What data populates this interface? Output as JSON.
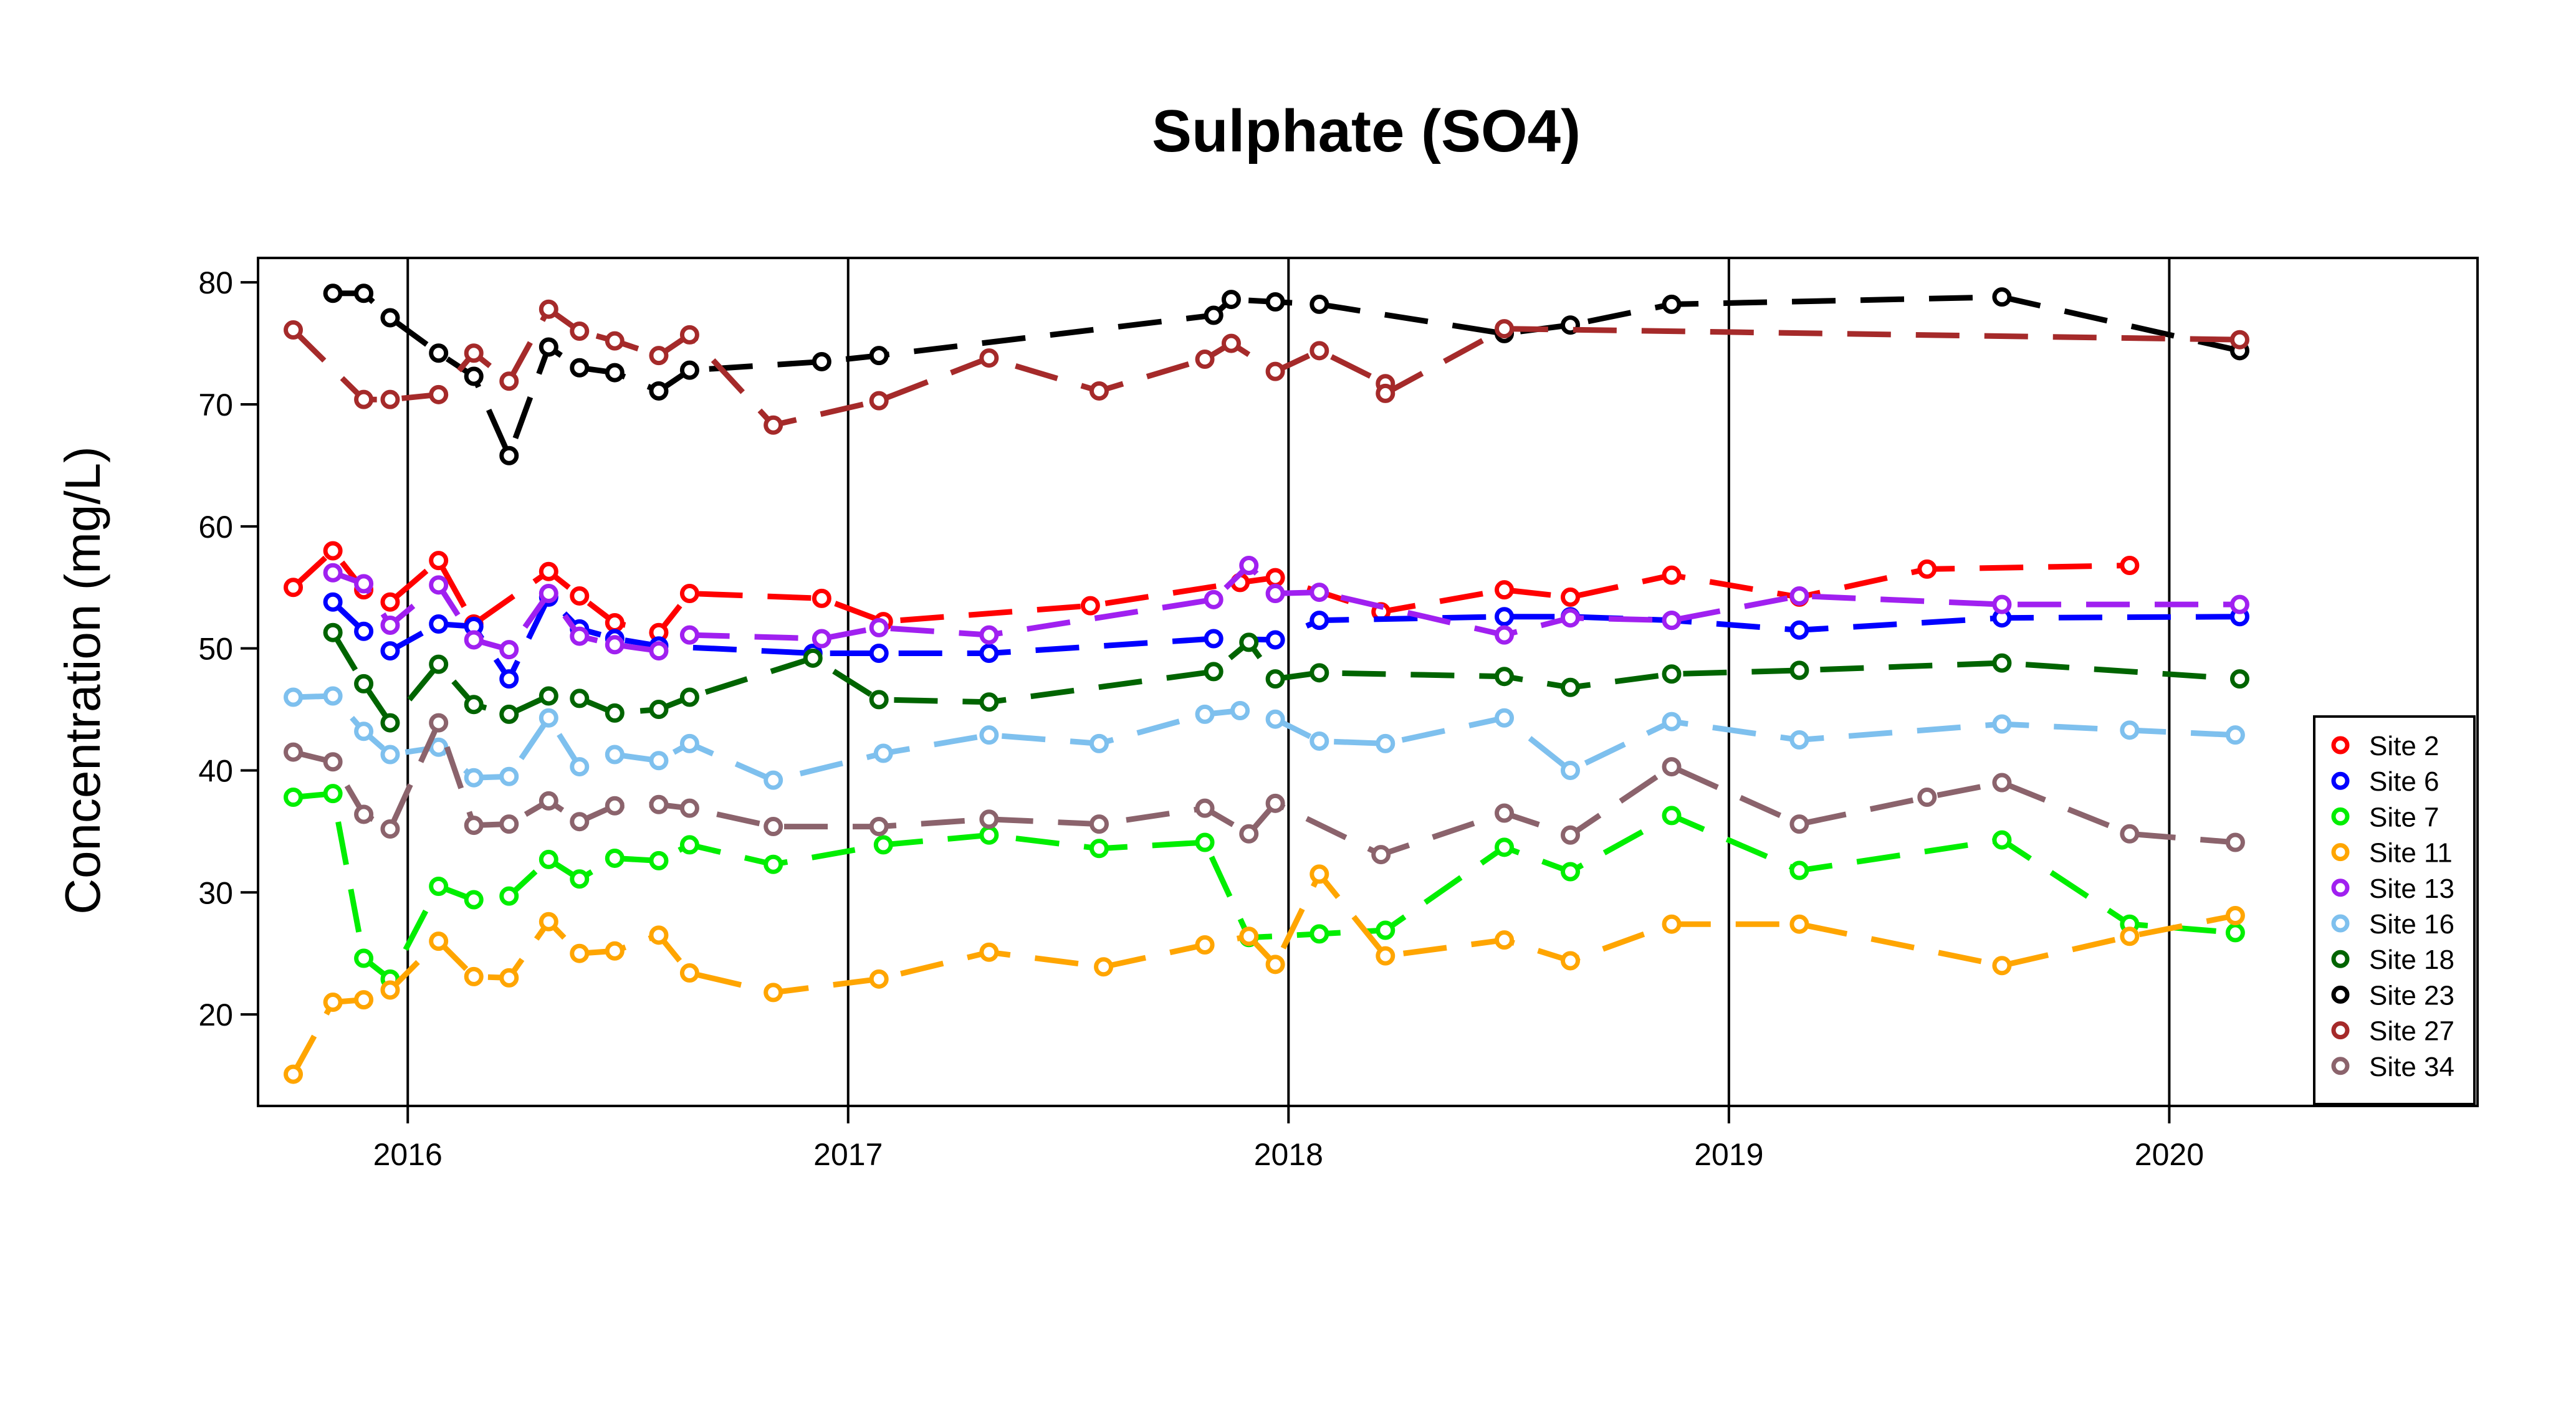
{
  "chart_data": {
    "type": "line",
    "title": "Sulphate (SO4)",
    "xlabel": "",
    "ylabel": "Concentration (mg/L)",
    "xlim": [
      2015.66,
      2020.7
    ],
    "ylim": [
      12.5,
      82
    ],
    "x_ticks": [
      2016,
      2017,
      2018,
      2019,
      2020
    ],
    "x_tick_labels": [
      "2016",
      "2017",
      "2018",
      "2019",
      "2020"
    ],
    "y_ticks": [
      20,
      30,
      40,
      50,
      60,
      70,
      80
    ],
    "y_tick_labels": [
      "20",
      "30",
      "40",
      "50",
      "60",
      "70",
      "80"
    ],
    "vertical_lines": [
      2016,
      2017,
      2018,
      2019,
      2020
    ],
    "legend_position": "bottom-right",
    "series": [
      {
        "name": "Site 2",
        "color": "#FF0000",
        "x": [
          2015.74,
          2015.83,
          2015.9,
          2015.96,
          2016.07,
          2016.15,
          2016.32,
          2016.39,
          2016.47,
          2016.57,
          2016.64,
          2016.94,
          2017.08,
          2017.55,
          2017.89,
          2017.97,
          2018.21,
          2018.49,
          2018.64,
          2018.87,
          2019.16,
          2019.45,
          2019.91
        ],
        "y": [
          55,
          58,
          54.8,
          53.8,
          57.2,
          52,
          56.3,
          54.3,
          52.1,
          51.3,
          54.5,
          54.1,
          52.2,
          53.5,
          55.4,
          55.8,
          53,
          54.8,
          54.2,
          56,
          54.2,
          56.5,
          56.8
        ]
      },
      {
        "name": "Site 6",
        "color": "#0000FF",
        "x": [
          2015.83,
          2015.9,
          2015.96,
          2016.07,
          2016.15,
          2016.23,
          2016.32,
          2016.39,
          2016.47,
          2016.57,
          2016.92,
          2017.07,
          2017.32,
          2017.83,
          2017.97,
          2018.07,
          2018.49,
          2018.64,
          2018.87,
          2019.16,
          2019.62,
          2020.16
        ],
        "y": [
          53.8,
          51.4,
          49.8,
          52,
          51.8,
          47.5,
          54.2,
          51.6,
          50.8,
          50.2,
          49.6,
          49.6,
          49.6,
          50.8,
          50.7,
          52.3,
          52.6,
          52.6,
          52.3,
          51.5,
          52.5,
          52.6
        ]
      },
      {
        "name": "Site 7",
        "color": "#00EE00",
        "x": [
          2015.74,
          2015.83,
          2015.9,
          2015.96,
          2016.07,
          2016.15,
          2016.23,
          2016.32,
          2016.39,
          2016.47,
          2016.57,
          2016.64,
          2016.83,
          2017.08,
          2017.32,
          2017.57,
          2017.81,
          2017.91,
          2018.07,
          2018.22,
          2018.49,
          2018.64,
          2018.87,
          2019.16,
          2019.62,
          2019.91,
          2020.15
        ],
        "y": [
          37.8,
          38.1,
          24.6,
          22.9,
          30.5,
          29.4,
          29.7,
          32.7,
          31.1,
          32.8,
          32.6,
          33.9,
          32.3,
          33.9,
          34.7,
          33.6,
          34.1,
          26.3,
          26.6,
          26.9,
          33.7,
          31.7,
          36.3,
          31.8,
          34.3,
          27.4,
          26.7
        ]
      },
      {
        "name": "Site 11",
        "color": "#FFA500",
        "x": [
          2015.74,
          2015.83,
          2015.9,
          2015.96,
          2016.07,
          2016.15,
          2016.23,
          2016.32,
          2016.39,
          2016.47,
          2016.57,
          2016.64,
          2016.83,
          2017.07,
          2017.32,
          2017.58,
          2017.81,
          2017.91,
          2017.97,
          2018.07,
          2018.22,
          2018.49,
          2018.64,
          2018.87,
          2019.16,
          2019.62,
          2019.91,
          2020.15
        ],
        "y": [
          15.1,
          21,
          21.2,
          22,
          26,
          23.1,
          23,
          27.6,
          25,
          25.2,
          26.5,
          23.4,
          21.8,
          22.9,
          25.1,
          23.9,
          25.7,
          26.4,
          24.1,
          31.5,
          24.8,
          26.1,
          24.4,
          27.4,
          27.4,
          24,
          26.4,
          28.1
        ]
      },
      {
        "name": "Site 13",
        "color": "#A020F0",
        "x": [
          2015.83,
          2015.9,
          2015.96,
          2016.07,
          2016.15,
          2016.23,
          2016.32,
          2016.39,
          2016.47,
          2016.57,
          2016.64,
          2016.94,
          2017.07,
          2017.32,
          2017.83,
          2017.91,
          2017.97,
          2018.07,
          2018.49,
          2018.64,
          2018.87,
          2019.16,
          2019.62,
          2020.16
        ],
        "y": [
          56.2,
          55.3,
          51.9,
          55.2,
          50.7,
          49.9,
          54.5,
          51,
          50.3,
          49.8,
          51.1,
          50.8,
          51.7,
          51.1,
          54,
          56.8,
          54.5,
          54.6,
          51.1,
          52.5,
          52.3,
          54.3,
          53.6,
          53.6
        ]
      },
      {
        "name": "Site 16",
        "color": "#7EC0EE",
        "x": [
          2015.74,
          2015.83,
          2015.9,
          2015.96,
          2016.07,
          2016.15,
          2016.23,
          2016.32,
          2016.39,
          2016.47,
          2016.57,
          2016.64,
          2016.83,
          2017.08,
          2017.32,
          2017.57,
          2017.81,
          2017.89,
          2017.97,
          2018.07,
          2018.22,
          2018.49,
          2018.64,
          2018.87,
          2019.16,
          2019.62,
          2019.91,
          2020.15
        ],
        "y": [
          46,
          46.1,
          43.2,
          41.3,
          41.9,
          39.4,
          39.5,
          44.3,
          40.3,
          41.3,
          40.8,
          42.2,
          39.2,
          41.4,
          42.9,
          42.2,
          44.6,
          44.9,
          44.2,
          42.4,
          42.2,
          44.3,
          40,
          44,
          42.5,
          43.8,
          43.3,
          42.9
        ]
      },
      {
        "name": "Site 18",
        "color": "#006400",
        "x": [
          2015.83,
          2015.9,
          2015.96,
          2016.07,
          2016.15,
          2016.23,
          2016.32,
          2016.39,
          2016.47,
          2016.57,
          2016.64,
          2016.92,
          2017.07,
          2017.32,
          2017.83,
          2017.91,
          2017.97,
          2018.07,
          2018.49,
          2018.64,
          2018.87,
          2019.16,
          2019.62,
          2020.16
        ],
        "y": [
          51.3,
          47.1,
          43.9,
          48.7,
          45.4,
          44.6,
          46.1,
          45.9,
          44.7,
          45,
          46,
          49.2,
          45.8,
          45.6,
          48.1,
          50.5,
          47.5,
          48,
          47.7,
          46.8,
          47.9,
          48.2,
          48.8,
          47.5
        ]
      },
      {
        "name": "Site 23",
        "color": "#000000",
        "x": [
          2015.83,
          2015.9,
          2015.96,
          2016.07,
          2016.15,
          2016.23,
          2016.32,
          2016.39,
          2016.47,
          2016.57,
          2016.64,
          2016.94,
          2017.07,
          2017.83,
          2017.87,
          2017.97,
          2018.07,
          2018.49,
          2018.64,
          2018.87,
          2019.62,
          2020.16
        ],
        "y": [
          79.1,
          79.1,
          77.1,
          74.2,
          72.3,
          65.8,
          74.7,
          73,
          72.6,
          71.1,
          72.8,
          73.5,
          74,
          77.3,
          78.6,
          78.4,
          78.2,
          75.8,
          76.5,
          78.2,
          78.8,
          74.4
        ]
      },
      {
        "name": "Site 27",
        "color": "#A52A2A",
        "x": [
          2015.74,
          2015.9,
          2015.96,
          2016.07,
          2016.15,
          2016.23,
          2016.32,
          2016.39,
          2016.47,
          2016.57,
          2016.64,
          2016.83,
          2017.07,
          2017.32,
          2017.57,
          2017.81,
          2017.87,
          2017.97,
          2018.07,
          2018.22,
          2018.22,
          2018.49,
          2020.16
        ],
        "y": [
          76.1,
          70.4,
          70.4,
          70.8,
          74.2,
          71.9,
          77.8,
          76,
          75.2,
          74,
          75.7,
          68.3,
          70.3,
          73.8,
          71.1,
          73.7,
          75,
          72.7,
          74.4,
          71.7,
          70.9,
          76.2,
          75.3
        ]
      },
      {
        "name": "Site 34",
        "color": "#8B636C",
        "x": [
          2015.74,
          2015.83,
          2015.9,
          2015.96,
          2016.07,
          2016.15,
          2016.23,
          2016.32,
          2016.39,
          2016.47,
          2016.57,
          2016.64,
          2016.83,
          2017.07,
          2017.32,
          2017.57,
          2017.81,
          2017.91,
          2017.97,
          2018.21,
          2018.49,
          2018.64,
          2018.87,
          2019.16,
          2019.45,
          2019.62,
          2019.91,
          2020.15
        ],
        "y": [
          41.5,
          40.7,
          36.4,
          35.2,
          43.9,
          35.5,
          35.6,
          37.5,
          35.8,
          37.1,
          37.2,
          36.9,
          35.4,
          35.4,
          36,
          35.6,
          36.9,
          34.8,
          37.3,
          33.1,
          36.5,
          34.7,
          40.3,
          35.6,
          37.8,
          39,
          34.8,
          34.1
        ]
      }
    ]
  }
}
